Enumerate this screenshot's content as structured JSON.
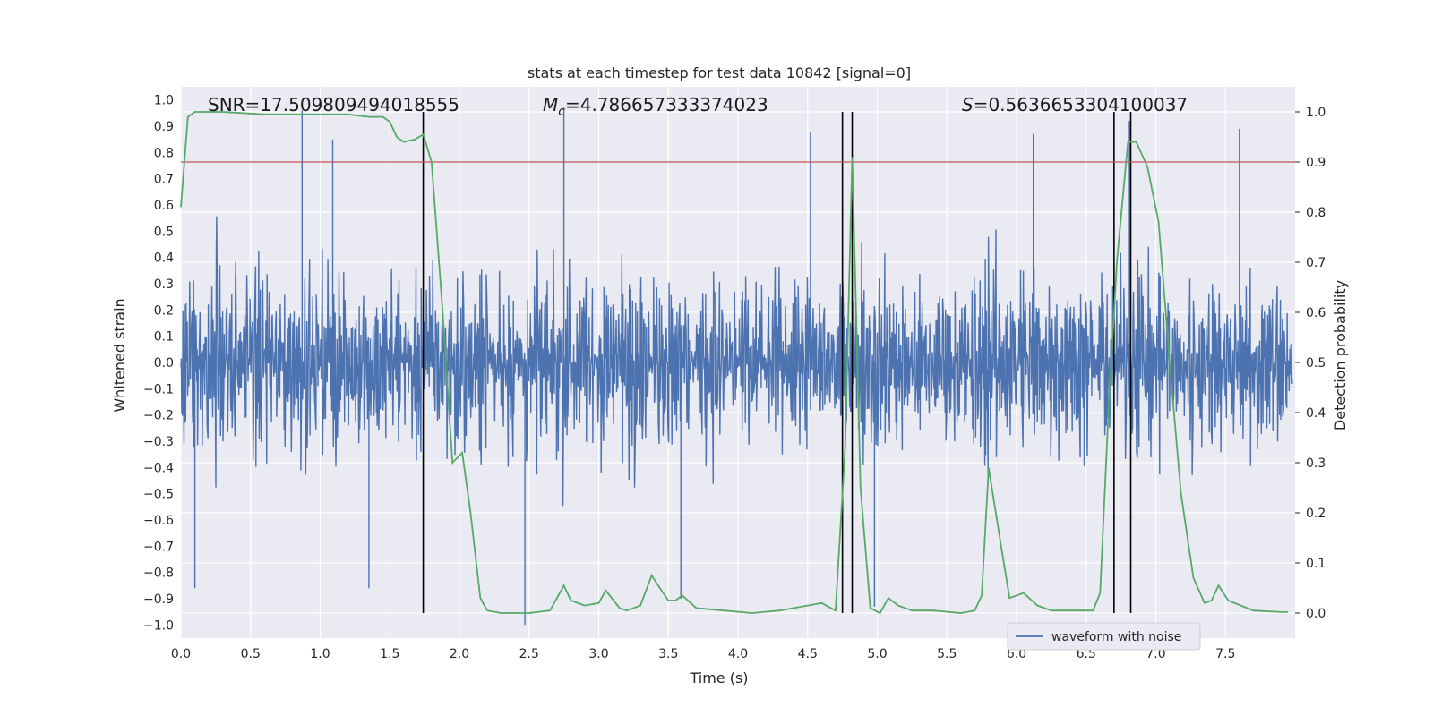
{
  "chart_data": {
    "type": "line",
    "title": "stats at each timestep for test data 10842 [signal=0]",
    "xlabel": "Time (s)",
    "ylabel_left": "Whitened strain",
    "ylabel_right": "Detection probability",
    "xlim": [
      0.0,
      8.0
    ],
    "ylim_left": [
      -1.05,
      1.05
    ],
    "ylim_right": [
      -0.05,
      1.05
    ],
    "x_ticks": [
      "0.0",
      "0.5",
      "1.0",
      "1.5",
      "2.0",
      "2.5",
      "3.0",
      "3.5",
      "4.0",
      "4.5",
      "5.0",
      "5.5",
      "6.0",
      "6.5",
      "7.0",
      "7.5"
    ],
    "y_ticks_left": [
      "1.0",
      "0.9",
      "0.8",
      "0.7",
      "0.6",
      "0.5",
      "0.4",
      "0.3",
      "0.2",
      "0.1",
      "0.0",
      "-0.1",
      "-0.2",
      "-0.3",
      "-0.4",
      "-0.5",
      "-0.6",
      "-0.7",
      "-0.8",
      "-0.9",
      "-1.0"
    ],
    "y_ticks_right": [
      "1.0",
      "0.9",
      "0.8",
      "0.7",
      "0.6",
      "0.5",
      "0.4",
      "0.3",
      "0.2",
      "0.1",
      "0.0"
    ],
    "grid": true,
    "legend": {
      "entries": [
        "waveform with noise"
      ],
      "location": "lower-right"
    },
    "annotations": {
      "snr": "SNR=17.509809494018555",
      "mc_symbol": "M",
      "mc_sub": "c",
      "mc_value": "=4.786657333374023",
      "s_symbol": "S",
      "s_value": "=0.5636653304100037"
    },
    "threshold": {
      "value": 0.9,
      "axis": "right",
      "color": "#c44e52"
    },
    "trigger_lines_x": [
      1.74,
      4.75,
      4.82,
      6.7,
      6.82
    ],
    "waveform": {
      "name": "waveform with noise",
      "color": "#4c72b0",
      "samples": 1400,
      "typical_amplitude": 0.45,
      "peak_amplitude": 0.97,
      "peaks": [
        {
          "t": 0.87,
          "v": 0.96
        },
        {
          "t": 0.1,
          "v": -0.86
        },
        {
          "t": 1.09,
          "v": 0.85
        },
        {
          "t": 2.75,
          "v": 0.97
        },
        {
          "t": 2.47,
          "v": -1.0
        },
        {
          "t": 4.52,
          "v": 0.88
        },
        {
          "t": 6.81,
          "v": 0.92
        },
        {
          "t": 7.6,
          "v": 0.89
        },
        {
          "t": 6.12,
          "v": 0.87
        },
        {
          "t": 1.35,
          "v": -0.86
        },
        {
          "t": 3.59,
          "v": -0.9
        },
        {
          "t": 4.98,
          "v": -0.93
        }
      ]
    },
    "detection_probability": {
      "color": "#55a868",
      "x": [
        0.0,
        0.05,
        0.1,
        0.3,
        0.6,
        0.9,
        1.2,
        1.35,
        1.45,
        1.5,
        1.55,
        1.6,
        1.68,
        1.74,
        1.8,
        1.88,
        1.95,
        2.02,
        2.08,
        2.15,
        2.2,
        2.3,
        2.5,
        2.65,
        2.7,
        2.75,
        2.8,
        2.9,
        3.0,
        3.05,
        3.15,
        3.2,
        3.3,
        3.38,
        3.45,
        3.5,
        3.55,
        3.6,
        3.7,
        3.9,
        4.1,
        4.3,
        4.5,
        4.6,
        4.7,
        4.77,
        4.82,
        4.88,
        4.95,
        5.02,
        5.08,
        5.15,
        5.25,
        5.4,
        5.6,
        5.7,
        5.75,
        5.8,
        5.88,
        5.95,
        6.05,
        6.15,
        6.25,
        6.4,
        6.55,
        6.6,
        6.66,
        6.72,
        6.8,
        6.86,
        6.94,
        7.02,
        7.1,
        7.18,
        7.27,
        7.35,
        7.4,
        7.45,
        7.52,
        7.7,
        7.9,
        7.95
      ],
      "y": [
        0.81,
        0.99,
        1.0,
        1.0,
        0.995,
        0.995,
        0.995,
        0.99,
        0.99,
        0.98,
        0.95,
        0.94,
        0.945,
        0.955,
        0.9,
        0.6,
        0.3,
        0.32,
        0.2,
        0.03,
        0.005,
        0.0,
        0.0,
        0.005,
        0.03,
        0.055,
        0.025,
        0.015,
        0.02,
        0.045,
        0.01,
        0.005,
        0.015,
        0.075,
        0.045,
        0.025,
        0.025,
        0.035,
        0.01,
        0.005,
        0.0,
        0.005,
        0.015,
        0.02,
        0.005,
        0.33,
        0.91,
        0.25,
        0.01,
        0.0,
        0.03,
        0.015,
        0.005,
        0.005,
        0.0,
        0.005,
        0.035,
        0.29,
        0.15,
        0.03,
        0.04,
        0.015,
        0.005,
        0.005,
        0.005,
        0.04,
        0.4,
        0.7,
        0.94,
        0.94,
        0.89,
        0.78,
        0.5,
        0.24,
        0.07,
        0.02,
        0.025,
        0.055,
        0.025,
        0.005,
        0.002,
        0.002
      ]
    }
  }
}
